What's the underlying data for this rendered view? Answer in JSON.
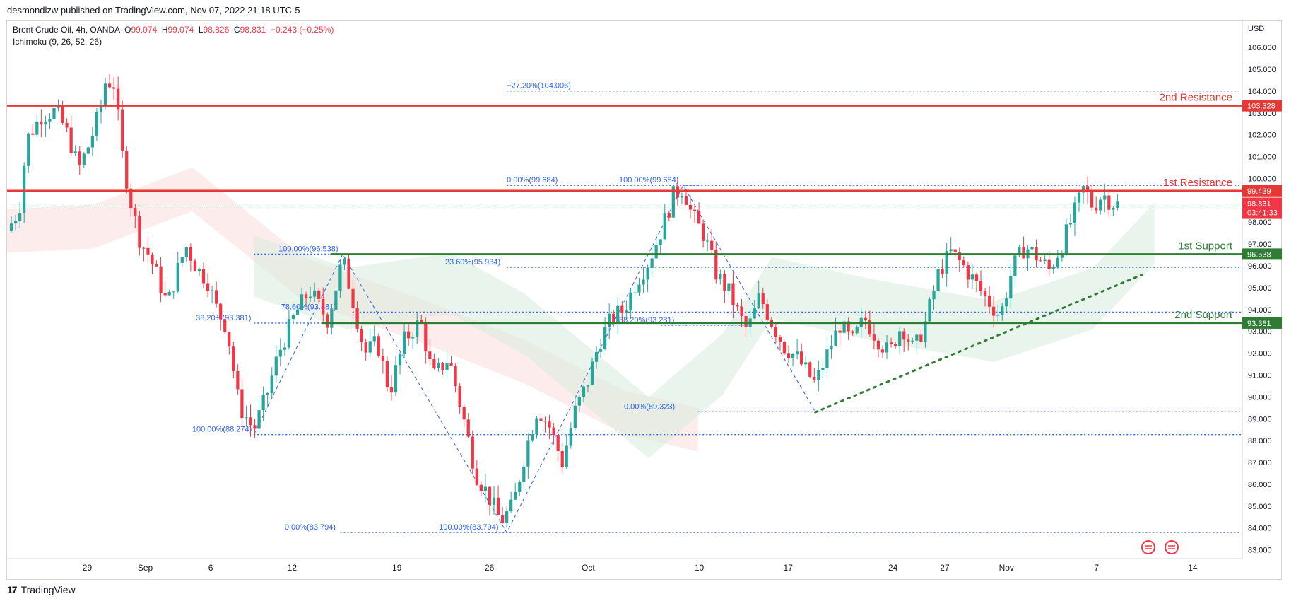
{
  "publisher_line": "desmondlzw published on TradingView.com, Nov 07, 2022 21:18 UTC-5",
  "legend": {
    "symbol": "Brent Crude Oil, 4h, OANDA",
    "open": "99.074",
    "high": "99.074",
    "low": "98.826",
    "close": "98.831",
    "change": "−0.243 (−0.25%)",
    "indicator": "Ichimoku (9, 26, 52, 26)"
  },
  "footer": {
    "brand": "TradingView"
  },
  "colors": {
    "up": "#26a69a",
    "down": "#f23645",
    "resistance": "#e53935",
    "support": "#2e7d32",
    "fib": "#2962ff",
    "fib_text": "#2962ff"
  },
  "chart_data": {
    "type": "candlestick",
    "currency": "USD",
    "ylim": [
      82.6,
      107.2
    ],
    "y_ticks": [
      "106.000",
      "105.000",
      "104.000",
      "103.000",
      "102.000",
      "101.000",
      "100.000",
      "99.000",
      "98.000",
      "97.000",
      "96.000",
      "95.000",
      "94.000",
      "93.000",
      "92.000",
      "91.000",
      "90.000",
      "89.000",
      "88.000",
      "87.000",
      "86.000",
      "85.000",
      "84.000",
      "83.000"
    ],
    "x_ticks": [
      {
        "label": "29",
        "t": 0.065
      },
      {
        "label": "Sep",
        "t": 0.112
      },
      {
        "label": "6",
        "t": 0.165
      },
      {
        "label": "12",
        "t": 0.231
      },
      {
        "label": "19",
        "t": 0.316
      },
      {
        "label": "26",
        "t": 0.391
      },
      {
        "label": "Oct",
        "t": 0.471
      },
      {
        "label": "10",
        "t": 0.561
      },
      {
        "label": "17",
        "t": 0.633
      },
      {
        "label": "24",
        "t": 0.718
      },
      {
        "label": "27",
        "t": 0.76
      },
      {
        "label": "Nov",
        "t": 0.81
      },
      {
        "label": "7",
        "t": 0.883
      },
      {
        "label": "14",
        "t": 0.961
      }
    ],
    "levels": [
      {
        "name": "2nd Resistance",
        "value": 103.328,
        "label": "103.328",
        "kind": "resistance"
      },
      {
        "name": "1st Resistance",
        "value": 99.439,
        "label": "99.439",
        "kind": "resistance"
      },
      {
        "name": "1st Support",
        "value": 96.538,
        "label": "96.538",
        "kind": "support"
      },
      {
        "name": "2nd Support",
        "value": 93.381,
        "label": "93.381",
        "kind": "support"
      }
    ],
    "last_price": {
      "value": 98.831,
      "label": "98.831",
      "countdown": "03:41:33"
    },
    "fib_lines": [
      {
        "text": "−27.20%(104.006)",
        "value": 104.006,
        "x0": 0.405,
        "x1": 1.0,
        "tx": 0.405
      },
      {
        "text": "0.00%(99.684)",
        "value": 99.684,
        "x0": 0.405,
        "x1": 1.0,
        "tx": 0.405
      },
      {
        "text": "100.00%(99.684)",
        "value": 99.684,
        "x0": 0.55,
        "x1": 0.56,
        "tx": 0.496
      },
      {
        "text": "100.00%(96.538)",
        "value": 96.538,
        "x0": 0.2,
        "x1": 0.405,
        "tx": 0.22
      },
      {
        "text": "23.60%(95.934)",
        "value": 95.934,
        "x0": 0.405,
        "x1": 1.0,
        "tx": 0.355
      },
      {
        "text": "78.60%(93.881)",
        "value": 93.881,
        "x0": 0.28,
        "x1": 1.0,
        "tx": 0.222
      },
      {
        "text": "38.20%(93.381)",
        "value": 93.381,
        "x0": 0.2,
        "x1": 0.28,
        "tx": 0.153
      },
      {
        "text": "38.20%(93.281)",
        "value": 93.281,
        "x0": 0.53,
        "x1": 0.6,
        "tx": 0.496
      },
      {
        "text": "0.00%(89.323)",
        "value": 89.323,
        "x0": 0.56,
        "x1": 1.0,
        "tx": 0.5
      },
      {
        "text": "100.00%(88.274)",
        "value": 88.274,
        "x0": 0.2,
        "x1": 1.0,
        "tx": 0.15
      },
      {
        "text": "0.00%(83.794)",
        "value": 83.794,
        "x0": 0.27,
        "x1": 1.0,
        "tx": 0.225
      },
      {
        "text": "100.00%(83.794)",
        "value": 83.794,
        "x0": 0.39,
        "x1": 0.41,
        "tx": 0.35
      }
    ],
    "fib_swings": [
      [
        [
          0.2,
          88.274
        ],
        [
          0.272,
          96.538
        ],
        [
          0.405,
          83.794
        ],
        [
          0.548,
          99.684
        ],
        [
          0.655,
          89.323
        ]
      ]
    ],
    "trendline": {
      "from": [
        0.655,
        89.3
      ],
      "to": [
        0.92,
        95.6
      ]
    },
    "price_path": [
      [
        0.0,
        97.6
      ],
      [
        0.01,
        98.6
      ],
      [
        0.016,
        101.8
      ],
      [
        0.028,
        102.9
      ],
      [
        0.04,
        103.1
      ],
      [
        0.05,
        101.9
      ],
      [
        0.058,
        100.4
      ],
      [
        0.066,
        101.5
      ],
      [
        0.075,
        103.0
      ],
      [
        0.08,
        104.5
      ],
      [
        0.087,
        104.3
      ],
      [
        0.093,
        101.2
      ],
      [
        0.1,
        99.0
      ],
      [
        0.108,
        97.1
      ],
      [
        0.115,
        96.5
      ],
      [
        0.122,
        95.5
      ],
      [
        0.13,
        94.2
      ],
      [
        0.137,
        95.6
      ],
      [
        0.145,
        96.9
      ],
      [
        0.155,
        95.8
      ],
      [
        0.162,
        95.4
      ],
      [
        0.17,
        94.0
      ],
      [
        0.178,
        93.2
      ],
      [
        0.188,
        89.6
      ],
      [
        0.2,
        88.5
      ],
      [
        0.21,
        90.0
      ],
      [
        0.22,
        92.0
      ],
      [
        0.232,
        93.6
      ],
      [
        0.245,
        94.9
      ],
      [
        0.26,
        93.5
      ],
      [
        0.272,
        96.3
      ],
      [
        0.28,
        94.5
      ],
      [
        0.29,
        92.0
      ],
      [
        0.3,
        92.5
      ],
      [
        0.31,
        90.2
      ],
      [
        0.322,
        92.6
      ],
      [
        0.335,
        93.5
      ],
      [
        0.345,
        90.9
      ],
      [
        0.358,
        91.8
      ],
      [
        0.37,
        89.0
      ],
      [
        0.38,
        86.5
      ],
      [
        0.39,
        85.5
      ],
      [
        0.4,
        84.3
      ],
      [
        0.41,
        85.0
      ],
      [
        0.42,
        87.5
      ],
      [
        0.43,
        89.5
      ],
      [
        0.44,
        88.6
      ],
      [
        0.45,
        87.0
      ],
      [
        0.46,
        89.3
      ],
      [
        0.47,
        90.6
      ],
      [
        0.48,
        92.5
      ],
      [
        0.49,
        93.6
      ],
      [
        0.5,
        94.0
      ],
      [
        0.51,
        95.3
      ],
      [
        0.52,
        96.2
      ],
      [
        0.53,
        97.6
      ],
      [
        0.54,
        99.2
      ],
      [
        0.548,
        99.6
      ],
      [
        0.555,
        98.3
      ],
      [
        0.565,
        97.4
      ],
      [
        0.575,
        95.6
      ],
      [
        0.585,
        94.8
      ],
      [
        0.592,
        93.9
      ],
      [
        0.6,
        93.0
      ],
      [
        0.61,
        94.6
      ],
      [
        0.62,
        93.4
      ],
      [
        0.63,
        92.3
      ],
      [
        0.64,
        91.8
      ],
      [
        0.655,
        90.6
      ],
      [
        0.665,
        92.0
      ],
      [
        0.675,
        93.3
      ],
      [
        0.685,
        92.5
      ],
      [
        0.695,
        93.6
      ],
      [
        0.705,
        92.7
      ],
      [
        0.715,
        92.0
      ],
      [
        0.725,
        93.3
      ],
      [
        0.735,
        92.1
      ],
      [
        0.745,
        93.5
      ],
      [
        0.755,
        95.7
      ],
      [
        0.765,
        96.6
      ],
      [
        0.775,
        96.0
      ],
      [
        0.785,
        95.2
      ],
      [
        0.795,
        94.4
      ],
      [
        0.805,
        93.7
      ],
      [
        0.815,
        95.9
      ],
      [
        0.825,
        96.9
      ],
      [
        0.835,
        96.4
      ],
      [
        0.845,
        95.8
      ],
      [
        0.855,
        97.0
      ],
      [
        0.865,
        98.4
      ],
      [
        0.873,
        99.6
      ],
      [
        0.88,
        98.7
      ],
      [
        0.888,
        99.3
      ],
      [
        0.895,
        98.9
      ],
      [
        0.9,
        98.83
      ]
    ],
    "cloud_green": [
      [
        0.2,
        96
      ],
      [
        0.275,
        94.5
      ],
      [
        0.36,
        95.2
      ],
      [
        0.42,
        93.3
      ],
      [
        0.52,
        88.6
      ],
      [
        0.58,
        91.5
      ],
      [
        0.62,
        95
      ],
      [
        0.7,
        94
      ],
      [
        0.8,
        93
      ],
      [
        0.88,
        94.5
      ],
      [
        0.93,
        97.5
      ]
    ],
    "cloud_red": [
      [
        0.0,
        97.6
      ],
      [
        0.07,
        97.8
      ],
      [
        0.15,
        99.5
      ],
      [
        0.24,
        95.4
      ],
      [
        0.34,
        93.4
      ],
      [
        0.42,
        91.6
      ],
      [
        0.5,
        89.3
      ],
      [
        0.56,
        88.5
      ]
    ],
    "y_axis_labels_visible": true
  }
}
